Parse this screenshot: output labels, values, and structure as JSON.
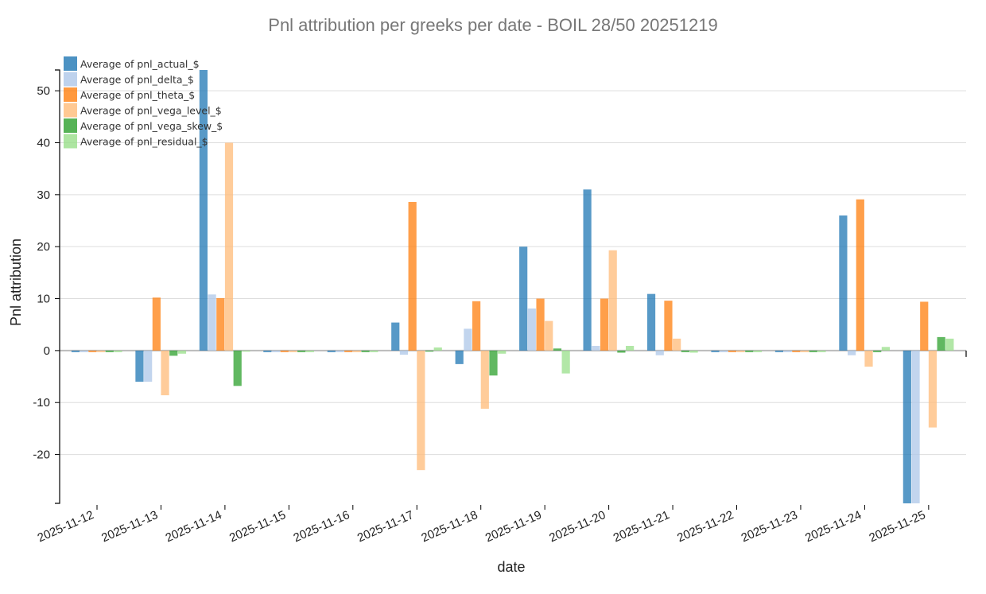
{
  "chart_data": {
    "type": "bar",
    "title": "Pnl attribution per greeks per date - BOIL 28/50 20251219",
    "xlabel": "date",
    "ylabel": "Pnl attribution",
    "ylim": [
      -29.4,
      54
    ],
    "yticks": [
      -20,
      -10,
      0,
      10,
      20,
      30,
      40,
      50
    ],
    "grid": true,
    "legend_position": "top-left",
    "categories": [
      "2025-11-12",
      "2025-11-13",
      "2025-11-14",
      "2025-11-15",
      "2025-11-16",
      "2025-11-17",
      "2025-11-18",
      "2025-11-19",
      "2025-11-20",
      "2025-11-21",
      "2025-11-22",
      "2025-11-23",
      "2025-11-24",
      "2025-11-25"
    ],
    "series": [
      {
        "name": "Average of pnl_actual_$",
        "color": "#1f77b4",
        "values": [
          -0.3,
          -6,
          54,
          -0.3,
          -0.3,
          5.4,
          -2.6,
          20,
          31,
          10.9,
          -0.3,
          -0.3,
          26,
          -29.5
        ]
      },
      {
        "name": "Average of pnl_delta_$",
        "color": "#aec7e8",
        "values": [
          -0.3,
          -6,
          10.8,
          -0.3,
          -0.3,
          -0.8,
          4.2,
          8.1,
          0.9,
          -0.9,
          -0.3,
          -0.3,
          -0.9,
          -29.5
        ]
      },
      {
        "name": "Average of pnl_theta_$",
        "color": "#ff7f0e",
        "values": [
          -0.3,
          10.2,
          10.1,
          -0.3,
          -0.3,
          28.6,
          9.5,
          10,
          10,
          9.6,
          -0.3,
          -0.3,
          29.1,
          9.4
        ]
      },
      {
        "name": "Average of pnl_vega_level_$",
        "color": "#ffbb78",
        "values": [
          -0.3,
          -8.6,
          40,
          -0.3,
          -0.3,
          -23,
          -11.2,
          5.7,
          19.3,
          2.3,
          -0.3,
          -0.3,
          -3.1,
          -14.8
        ]
      },
      {
        "name": "Average of pnl_vega_skew_$",
        "color": "#2ca02c",
        "values": [
          -0.3,
          -1,
          -6.8,
          -0.3,
          -0.3,
          -0.2,
          -4.8,
          0.4,
          -0.4,
          -0.3,
          -0.3,
          -0.3,
          -0.3,
          2.6
        ]
      },
      {
        "name": "Average of pnl_residual_$",
        "color": "#98df8a",
        "values": [
          -0.3,
          -0.6,
          -0.2,
          -0.3,
          -0.3,
          0.6,
          -0.6,
          -4.4,
          0.9,
          -0.4,
          -0.3,
          -0.3,
          0.7,
          2.3
        ]
      }
    ]
  }
}
